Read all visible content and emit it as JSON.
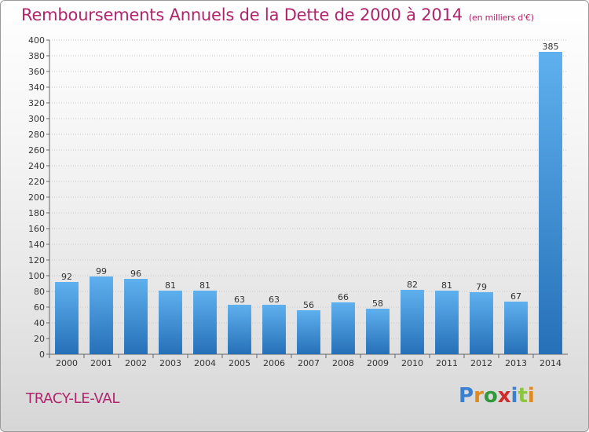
{
  "title": "Remboursements Annuels de la Dette de 2000 à 2014",
  "unit": "(en milliers d'€)",
  "commune": "TRACY-LE-VAL",
  "logo": {
    "text": "Proxiti",
    "letters": [
      "P",
      "r",
      "o",
      "x",
      "i",
      "t",
      "i"
    ],
    "colors": [
      "#3a7fd0",
      "#e08a1e",
      "#2e9a3a",
      "#d02a2a",
      "#3a7fd0",
      "#8cc63f",
      "#e08a1e"
    ]
  },
  "colors": {
    "bar": "#3d8fdc",
    "bar_light": "#5fb0ee",
    "bar_dark": "#2670b8",
    "title": "#b0246b",
    "grid": "#c8c8c8"
  },
  "chart_data": {
    "type": "bar",
    "categories": [
      "2000",
      "2001",
      "2002",
      "2003",
      "2004",
      "2005",
      "2006",
      "2007",
      "2008",
      "2009",
      "2010",
      "2011",
      "2012",
      "2013",
      "2014"
    ],
    "values": [
      92,
      99,
      96,
      81,
      81,
      63,
      63,
      56,
      66,
      58,
      82,
      81,
      79,
      67,
      385
    ],
    "ylim": [
      0,
      400
    ],
    "yticks": [
      0,
      20,
      40,
      60,
      80,
      100,
      120,
      140,
      160,
      180,
      200,
      220,
      240,
      260,
      280,
      300,
      320,
      340,
      360,
      380,
      400
    ],
    "grid": true,
    "data_labels": true
  }
}
